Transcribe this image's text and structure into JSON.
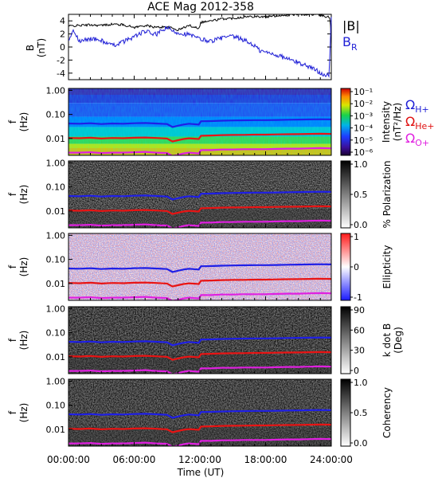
{
  "chart_data": [
    {
      "type": "line",
      "title": "ACE Mag 2012-358",
      "ylabel": "B",
      "ylabel_unit": "(nT)",
      "yticks": [
        "4",
        "2",
        "0",
        "-2",
        "-4"
      ],
      "ylim": [
        -5,
        5
      ],
      "xlim": [
        0,
        24
      ],
      "series": [
        {
          "name": "|B|",
          "color": "#000000",
          "x": [
            0,
            1,
            2,
            3,
            4,
            5,
            6,
            7,
            8,
            9,
            10,
            11,
            11.9,
            12.1,
            13,
            14,
            15,
            16,
            17,
            18,
            19,
            20,
            21,
            22,
            23,
            23.9,
            24
          ],
          "y": [
            3.2,
            3.3,
            3.4,
            3.3,
            3.5,
            3.4,
            3.0,
            3.3,
            3.0,
            3.1,
            2.6,
            3.3,
            2.9,
            3.8,
            4.0,
            4.3,
            4.4,
            4.6,
            4.7,
            4.6,
            4.8,
            4.9,
            5.0,
            5.0,
            4.9,
            4.5,
            0.4
          ]
        },
        {
          "name": "B",
          "name_subscript": "R",
          "color": "#1f1fd6",
          "x": [
            0,
            0.5,
            1,
            2,
            3,
            4,
            5,
            6,
            7,
            8,
            9,
            9.5,
            10,
            11,
            12,
            13,
            14,
            15,
            16,
            17,
            17.5,
            18,
            19,
            20,
            21,
            22,
            23,
            23.8,
            24
          ],
          "y": [
            1.2,
            2.5,
            0.8,
            1.3,
            1.0,
            0.2,
            0.8,
            1.6,
            2.4,
            1.9,
            3.0,
            2.4,
            2.2,
            1.9,
            1.2,
            0.9,
            1.4,
            1.6,
            1.1,
            0.2,
            -0.6,
            -0.8,
            -1.2,
            -1.8,
            -2.4,
            -3.0,
            -3.9,
            -4.5,
            4.6
          ]
        }
      ]
    },
    {
      "type": "heatmap",
      "ylabel": "f",
      "ylabel_unit": "(Hz)",
      "yticks": [
        "1.00",
        "0.10",
        "0.01"
      ],
      "colorbar": {
        "label": "Intensity",
        "unit": "(nT²/Hz)",
        "ticks": [
          "10⁻¹",
          "10⁻²",
          "10⁻³",
          "10⁻⁴",
          "10⁻⁵",
          "10⁻⁶"
        ]
      },
      "overlays": [
        {
          "name": "Ω",
          "subscript": "H+",
          "color": "#1f1fd6"
        },
        {
          "name": "Ω",
          "subscript": "He+",
          "color": "#e01010"
        },
        {
          "name": "Ω",
          "subscript": "O+",
          "color": "#e020e0"
        }
      ]
    },
    {
      "type": "heatmap",
      "ylabel": "f",
      "ylabel_unit": "(Hz)",
      "yticks": [
        "1.00",
        "0.10",
        "0.01"
      ],
      "colorbar": {
        "label": "% Polarization",
        "unit": "",
        "ticks": [
          "1.0",
          "0.5",
          "0.0"
        ]
      }
    },
    {
      "type": "heatmap",
      "ylabel": "f",
      "ylabel_unit": "(Hz)",
      "yticks": [
        "1.00",
        "0.10",
        "0.01"
      ],
      "colorbar": {
        "label": "Ellipticity",
        "unit": "",
        "ticks": [
          "1",
          "0",
          "-1"
        ]
      }
    },
    {
      "type": "heatmap",
      "ylabel": "f",
      "ylabel_unit": "(Hz)",
      "yticks": [
        "1.00",
        "0.10",
        "0.01"
      ],
      "colorbar": {
        "label": "k dot B",
        "unit": "(Deg)",
        "ticks": [
          "90",
          "60",
          "30",
          "0"
        ]
      }
    },
    {
      "type": "heatmap",
      "ylabel": "f",
      "ylabel_unit": "(Hz)",
      "yticks": [
        "1.00",
        "0.10",
        "0.01"
      ],
      "colorbar": {
        "label": "Coherency",
        "unit": "",
        "ticks": [
          "1.0",
          "0.5",
          "0.0"
        ]
      },
      "xticks": [
        "00:00:00",
        "06:00:00",
        "12:00:00",
        "18:00:00",
        "24:00:00"
      ],
      "xlabel": "Time (UT)"
    }
  ],
  "gyrofrequency_curves": {
    "x": [
      0,
      1,
      2,
      3,
      4,
      5,
      6,
      7,
      8,
      9,
      9.5,
      10,
      10.5,
      11,
      11.9,
      12.1,
      13,
      14,
      15,
      16,
      17,
      18,
      19,
      20,
      21,
      22,
      23,
      24
    ],
    "H": [
      0.042,
      0.041,
      0.043,
      0.04,
      0.042,
      0.041,
      0.043,
      0.044,
      0.042,
      0.04,
      0.03,
      0.034,
      0.038,
      0.041,
      0.038,
      0.052,
      0.053,
      0.055,
      0.056,
      0.057,
      0.058,
      0.058,
      0.059,
      0.06,
      0.061,
      0.062,
      0.063,
      0.062
    ],
    "He": [
      0.0105,
      0.0103,
      0.0108,
      0.01,
      0.0105,
      0.0103,
      0.0108,
      0.011,
      0.0105,
      0.01,
      0.0075,
      0.0085,
      0.0095,
      0.0102,
      0.0095,
      0.013,
      0.0133,
      0.0138,
      0.014,
      0.0142,
      0.0145,
      0.0145,
      0.0148,
      0.015,
      0.0152,
      0.0155,
      0.0158,
      0.0155
    ],
    "O": [
      0.0026,
      0.0026,
      0.0027,
      0.0025,
      0.0026,
      0.0026,
      0.0027,
      0.0028,
      0.0026,
      0.0025,
      0.0019,
      0.0021,
      0.0024,
      0.0026,
      0.0024,
      0.0033,
      0.0033,
      0.0035,
      0.0035,
      0.0036,
      0.0036,
      0.0036,
      0.0037,
      0.0038,
      0.0038,
      0.0039,
      0.004,
      0.0039
    ]
  }
}
